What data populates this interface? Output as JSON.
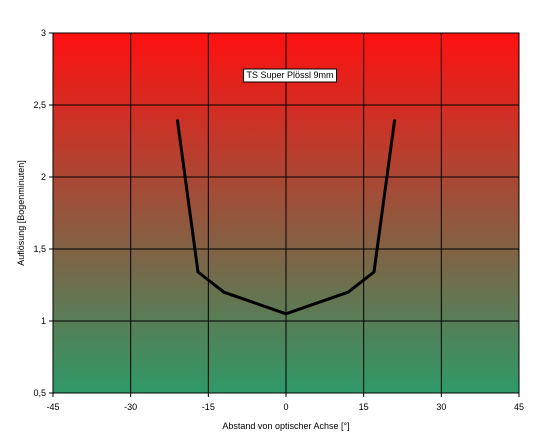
{
  "chart_data": {
    "type": "line",
    "title": "",
    "xlabel": "Abstand von optischer Achse [°]",
    "ylabel": "Auflösung [Bogenminuten]",
    "xlim": [
      -45,
      45
    ],
    "ylim": [
      0.5,
      3
    ],
    "x_ticks": [
      -45,
      -30,
      -15,
      0,
      15,
      30,
      45
    ],
    "y_ticks": [
      0.5,
      1,
      1.5,
      2,
      2.5,
      3
    ],
    "x_tick_labels": [
      "-45",
      "-30",
      "-15",
      "0",
      "15",
      "30",
      "45"
    ],
    "y_tick_labels": [
      "0,5",
      "1",
      "1,5",
      "2",
      "2,5",
      "3"
    ],
    "grid": true,
    "background": {
      "top_color": "#ff1010",
      "bottom_color": "#2e9968"
    },
    "line_color": "#000000",
    "legend": {
      "placement": "top-center"
    },
    "series": [
      {
        "name": "TS Super Plössl 9mm",
        "x": [
          -21,
          -17,
          -12,
          0,
          12,
          17,
          21
        ],
        "y": [
          2.4,
          1.34,
          1.2,
          1.05,
          1.2,
          1.34,
          2.4
        ]
      }
    ]
  }
}
